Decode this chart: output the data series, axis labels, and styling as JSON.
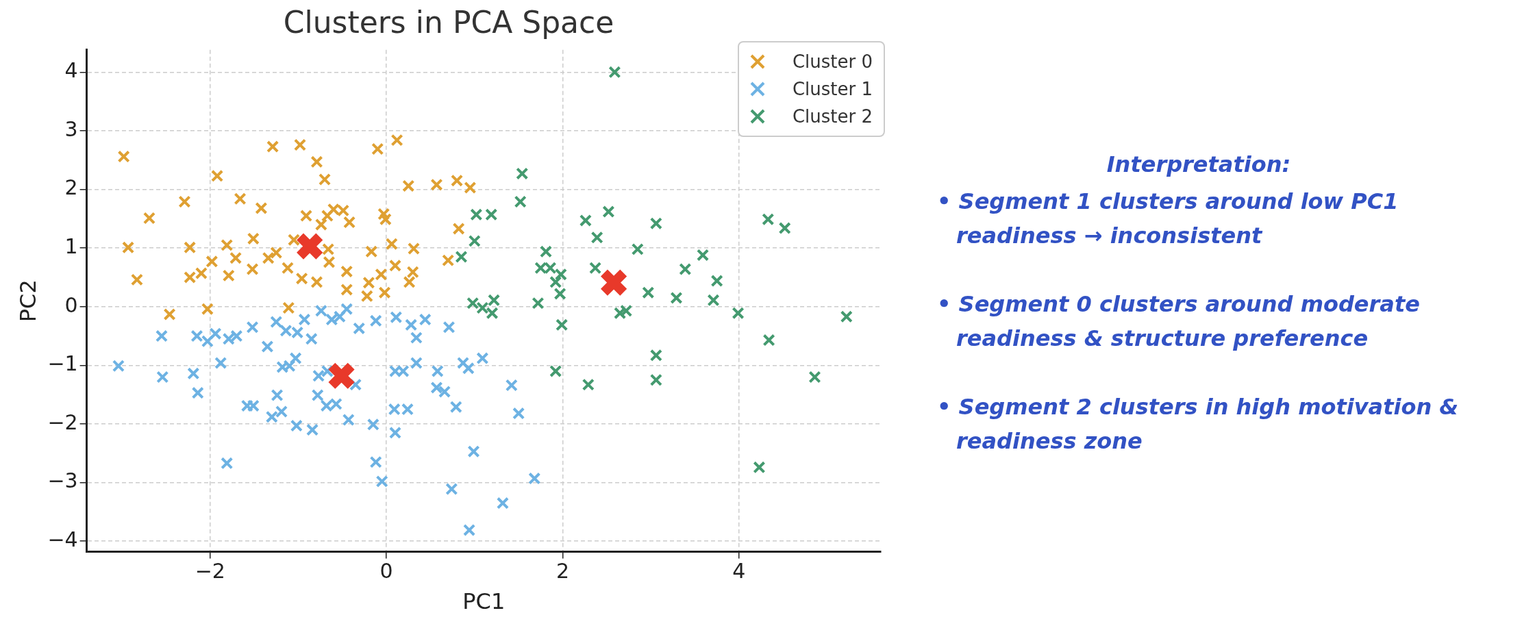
{
  "chart_data": {
    "type": "scatter",
    "title": "Clusters in PCA Space",
    "xlabel": "PC1",
    "ylabel": "PC2",
    "xlim": [
      -3.4,
      5.61
    ],
    "xticks": [
      -2,
      0,
      2,
      4
    ],
    "ylim": [
      -4.18,
      4.38
    ],
    "yticks": [
      -4,
      -3,
      -2,
      -1,
      0,
      1,
      2,
      3,
      4
    ],
    "grid": true,
    "legend": "top right",
    "marker": "cross",
    "series": [
      {
        "name": "Cluster 0",
        "color": "#dfa032",
        "x": [
          -2.98,
          -2.93,
          -2.83,
          -2.69,
          -2.46,
          -2.29,
          -2.23,
          -2.23,
          -2.1,
          -2.03,
          -1.92,
          -1.98,
          -1.81,
          -1.79,
          -1.71,
          -1.66,
          -1.52,
          -1.51,
          -1.42,
          -1.34,
          -1.29,
          -1.11,
          -1.12,
          -0.98,
          -1.05,
          -0.79,
          -0.7,
          -0.91,
          -0.67,
          -0.6,
          -0.74,
          -0.49,
          -0.42,
          -0.65,
          -0.79,
          -0.45,
          -0.66,
          -0.1,
          -0.03,
          -0.01,
          0.12,
          -0.17,
          0.06,
          -0.2,
          -0.22,
          -0.06,
          0.1,
          -0.02,
          0.25,
          0.31,
          0.26,
          0.3,
          0.57,
          0.8,
          0.95,
          0.82,
          0.7,
          -0.45,
          -1.25,
          -0.96
        ],
        "values": [
          2.56,
          1.01,
          0.46,
          1.51,
          -0.13,
          1.79,
          1.01,
          0.5,
          0.57,
          -0.04,
          2.23,
          0.77,
          1.05,
          0.53,
          0.83,
          1.84,
          0.64,
          1.16,
          1.68,
          0.83,
          2.73,
          -0.02,
          0.66,
          2.76,
          1.14,
          2.47,
          2.17,
          1.55,
          1.55,
          1.66,
          1.4,
          1.64,
          1.44,
          0.76,
          0.42,
          0.29,
          0.98,
          2.69,
          1.58,
          1.49,
          2.84,
          0.94,
          1.07,
          0.41,
          0.18,
          0.55,
          0.7,
          0.24,
          2.06,
          0.99,
          0.42,
          0.59,
          2.08,
          2.15,
          2.03,
          1.33,
          0.79,
          0.6,
          0.92,
          0.48
        ]
      },
      {
        "name": "Cluster 1",
        "color": "#6db2e3",
        "x": [
          -3.04,
          -2.55,
          -2.54,
          -2.19,
          -2.14,
          -2.15,
          -2.03,
          -1.94,
          -1.88,
          -1.79,
          -1.7,
          -1.81,
          -1.52,
          -1.58,
          -1.51,
          -1.35,
          -1.25,
          -1.14,
          -1.18,
          -1.24,
          -1.1,
          -1.03,
          -1.3,
          -1.19,
          -1.02,
          -1.01,
          -0.93,
          -0.85,
          -0.84,
          -0.77,
          -0.78,
          -0.67,
          -0.74,
          -0.62,
          -0.53,
          -0.45,
          -0.68,
          -0.57,
          -0.43,
          -0.35,
          -0.31,
          -0.15,
          -0.12,
          -0.05,
          -0.12,
          0.11,
          0.1,
          0.19,
          0.09,
          0.24,
          0.1,
          0.28,
          0.34,
          0.44,
          0.34,
          0.58,
          0.57,
          0.66,
          0.71,
          0.79,
          0.74,
          0.87,
          0.93,
          0.99,
          1.09,
          0.94,
          1.32,
          1.42,
          1.5,
          1.68
        ],
        "values": [
          -1.01,
          -0.5,
          -1.2,
          -1.14,
          -1.47,
          -0.5,
          -0.59,
          -0.46,
          -0.96,
          -0.55,
          -0.5,
          -2.67,
          -0.35,
          -1.69,
          -1.69,
          -0.68,
          -0.26,
          -0.41,
          -1.03,
          -1.51,
          -1.01,
          -0.88,
          -1.88,
          -1.79,
          -2.03,
          -0.44,
          -0.22,
          -0.55,
          -2.1,
          -1.18,
          -1.51,
          -1.1,
          -0.07,
          -0.22,
          -0.17,
          -0.04,
          -1.69,
          -1.66,
          -1.93,
          -1.33,
          -0.37,
          -2.01,
          -2.65,
          -2.98,
          -0.24,
          -0.18,
          -1.1,
          -1.1,
          -1.75,
          -1.75,
          -2.15,
          -0.31,
          -0.53,
          -0.22,
          -0.96,
          -1.1,
          -1.38,
          -1.45,
          -0.35,
          -1.71,
          -3.11,
          -0.96,
          -1.05,
          -2.47,
          -0.88,
          -3.81,
          -3.35,
          -1.34,
          -1.82,
          -2.93
        ]
      },
      {
        "name": "Cluster 2",
        "color": "#449a6f",
        "x": [
          2.59,
          1.54,
          1.52,
          1.02,
          1.19,
          0.85,
          1.0,
          0.98,
          1.09,
          1.2,
          1.22,
          1.72,
          1.75,
          1.81,
          1.86,
          1.92,
          1.97,
          1.98,
          1.99,
          1.92,
          2.26,
          2.39,
          2.37,
          2.52,
          2.65,
          2.72,
          2.85,
          2.97,
          3.06,
          3.06,
          3.06,
          2.29,
          3.29,
          3.39,
          3.59,
          3.75,
          3.71,
          3.99,
          4.33,
          4.52,
          4.34,
          4.23,
          4.86,
          5.22
        ],
        "values": [
          4.0,
          2.27,
          1.79,
          1.57,
          1.57,
          0.85,
          1.12,
          0.06,
          -0.02,
          -0.11,
          0.11,
          0.06,
          0.66,
          0.94,
          0.66,
          0.42,
          0.22,
          0.55,
          -0.31,
          -1.1,
          1.47,
          1.18,
          0.66,
          1.62,
          -0.11,
          -0.07,
          0.98,
          0.24,
          1.42,
          -0.83,
          -1.25,
          -1.33,
          0.15,
          0.64,
          0.88,
          0.44,
          0.11,
          -0.11,
          1.49,
          1.34,
          -0.57,
          -2.74,
          -1.2,
          -0.17
        ]
      },
      {
        "color": "#e8392a",
        "x": [
          -0.87,
          -0.51,
          2.58
        ],
        "values": [
          1.03,
          -1.18,
          0.41
        ]
      }
    ],
    "annotations": [
      "Interpretation:",
      "• Segment 1 clusters around low PC1 readiness → inconsistent",
      "• Segment 0 clusters around moderate readiness & structure preference",
      "• Segment 2 clusters in high motivation & readiness zone"
    ]
  }
}
